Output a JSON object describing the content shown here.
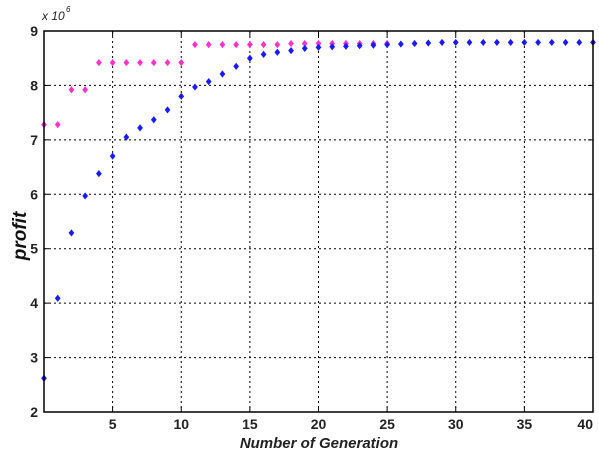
{
  "chart_data": {
    "type": "scatter",
    "title": "",
    "xlabel": "Number of Generation",
    "ylabel": "profit",
    "y_multiplier_label": "x 10",
    "y_multiplier_exponent": "6",
    "xlim": [
      0,
      40
    ],
    "ylim": [
      2,
      9
    ],
    "xticks": [
      5,
      10,
      15,
      20,
      25,
      30,
      35,
      40
    ],
    "yticks": [
      2,
      3,
      4,
      5,
      6,
      7,
      8,
      9
    ],
    "grid": true,
    "legend": "none",
    "series": [
      {
        "color": "#ff33cc",
        "marker": "diamond",
        "points": [
          [
            0,
            7.28
          ],
          [
            1,
            7.28
          ],
          [
            2,
            7.92
          ],
          [
            3,
            7.92
          ],
          [
            4,
            8.42
          ],
          [
            5,
            8.42
          ],
          [
            6,
            8.42
          ],
          [
            7,
            8.42
          ],
          [
            8,
            8.42
          ],
          [
            9,
            8.42
          ],
          [
            10,
            8.42
          ],
          [
            11,
            8.75
          ],
          [
            12,
            8.75
          ],
          [
            13,
            8.75
          ],
          [
            14,
            8.75
          ],
          [
            15,
            8.75
          ],
          [
            16,
            8.75
          ],
          [
            17,
            8.75
          ],
          [
            18,
            8.77
          ],
          [
            19,
            8.77
          ],
          [
            20,
            8.77
          ],
          [
            21,
            8.77
          ],
          [
            22,
            8.77
          ],
          [
            23,
            8.77
          ],
          [
            24,
            8.77
          ],
          [
            25,
            8.77
          ]
        ]
      },
      {
        "color": "#1a1aff",
        "marker": "diamond",
        "points": [
          [
            0,
            2.62
          ],
          [
            1,
            4.09
          ],
          [
            2,
            5.29
          ],
          [
            3,
            5.97
          ],
          [
            4,
            6.38
          ],
          [
            5,
            6.7
          ],
          [
            6,
            7.05
          ],
          [
            7,
            7.22
          ],
          [
            8,
            7.37
          ],
          [
            9,
            7.55
          ],
          [
            10,
            7.8
          ],
          [
            11,
            7.97
          ],
          [
            12,
            8.07
          ],
          [
            13,
            8.21
          ],
          [
            14,
            8.35
          ],
          [
            15,
            8.5
          ],
          [
            16,
            8.57
          ],
          [
            17,
            8.61
          ],
          [
            18,
            8.64
          ],
          [
            19,
            8.68
          ],
          [
            20,
            8.7
          ],
          [
            21,
            8.71
          ],
          [
            22,
            8.72
          ],
          [
            23,
            8.73
          ],
          [
            24,
            8.74
          ],
          [
            25,
            8.75
          ],
          [
            26,
            8.76
          ],
          [
            27,
            8.77
          ],
          [
            28,
            8.78
          ],
          [
            29,
            8.79
          ],
          [
            30,
            8.79
          ],
          [
            31,
            8.79
          ],
          [
            32,
            8.79
          ],
          [
            33,
            8.79
          ],
          [
            34,
            8.79
          ],
          [
            35,
            8.79
          ],
          [
            36,
            8.79
          ],
          [
            37,
            8.79
          ],
          [
            38,
            8.79
          ],
          [
            39,
            8.79
          ],
          [
            40,
            8.79
          ]
        ]
      }
    ]
  }
}
